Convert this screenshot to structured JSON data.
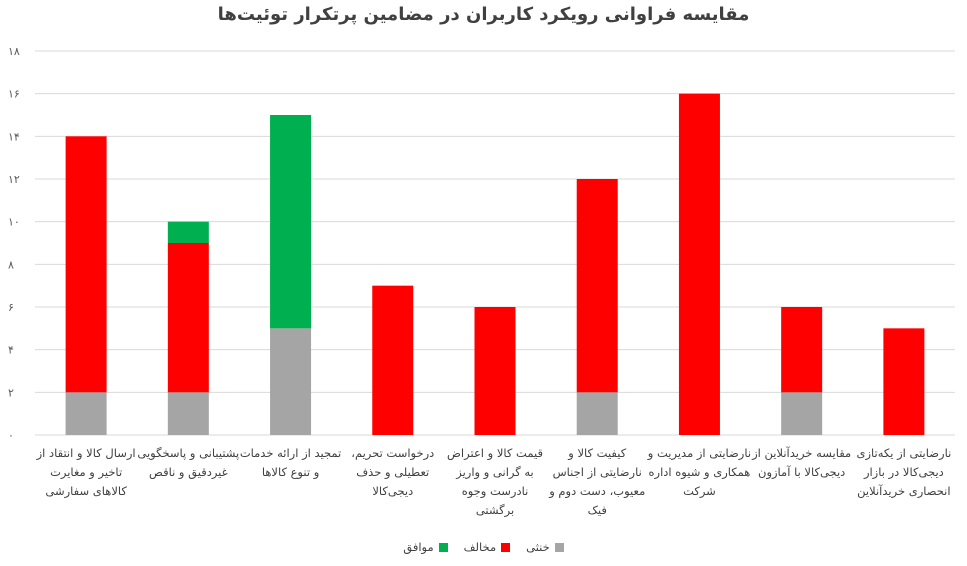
{
  "chart_data": {
    "type": "bar",
    "stacked": true,
    "title": "مقایسه فراوانی رویکرد کاربران در مضامین پرتکرار توئیت‌ها",
    "categories": [
      "ارسال کالا و انتقاد از\nتاخیر و مغایرت\nکالاهای سفارشی",
      "پشتیبانی و پاسخگویی\nغیردقیق و ناقص",
      "تمجید از ارائه خدمات\nو تنوع کالاها",
      "درخواست تحریم،\nتعطیلی و حذف\nدیجی‌کالا",
      "قیمت کالا و اعتراض\nبه گرانی و واریز\nنادرست وجوه\nبرگشتی",
      "کیفیت کالا و\nنارضایتی از اجناس\nمعیوب، دست دوم و\nفیک",
      "نارضایتی از مدیریت و\nهمکاری و شیوه اداره\nشرکت",
      "مقایسه خریدآنلاین از\nدیجی‌کالا با آمازون",
      "نارضایتی از یکه‌تازی\nدیجی‌کالا در بازار\nانحصاری خریدآنلاین"
    ],
    "series": [
      {
        "name": "خنثی",
        "color": "#a5a5a5",
        "values": [
          2,
          2,
          5,
          0,
          0,
          2,
          0,
          2,
          0
        ]
      },
      {
        "name": "مخالف",
        "color": "#ff0000",
        "values": [
          12,
          7,
          0,
          7,
          6,
          10,
          16,
          4,
          5
        ]
      },
      {
        "name": "موافق",
        "color": "#00b050",
        "values": [
          0,
          1,
          10,
          0,
          0,
          0,
          0,
          0,
          0
        ]
      }
    ],
    "ylim": [
      0,
      18
    ],
    "yticks": [
      "۰",
      "۲",
      "۴",
      "۶",
      "۸",
      "۱۰",
      "۱۲",
      "۱۴",
      "۱۶",
      "۱۸"
    ],
    "grid": true,
    "legend": "bottom"
  }
}
